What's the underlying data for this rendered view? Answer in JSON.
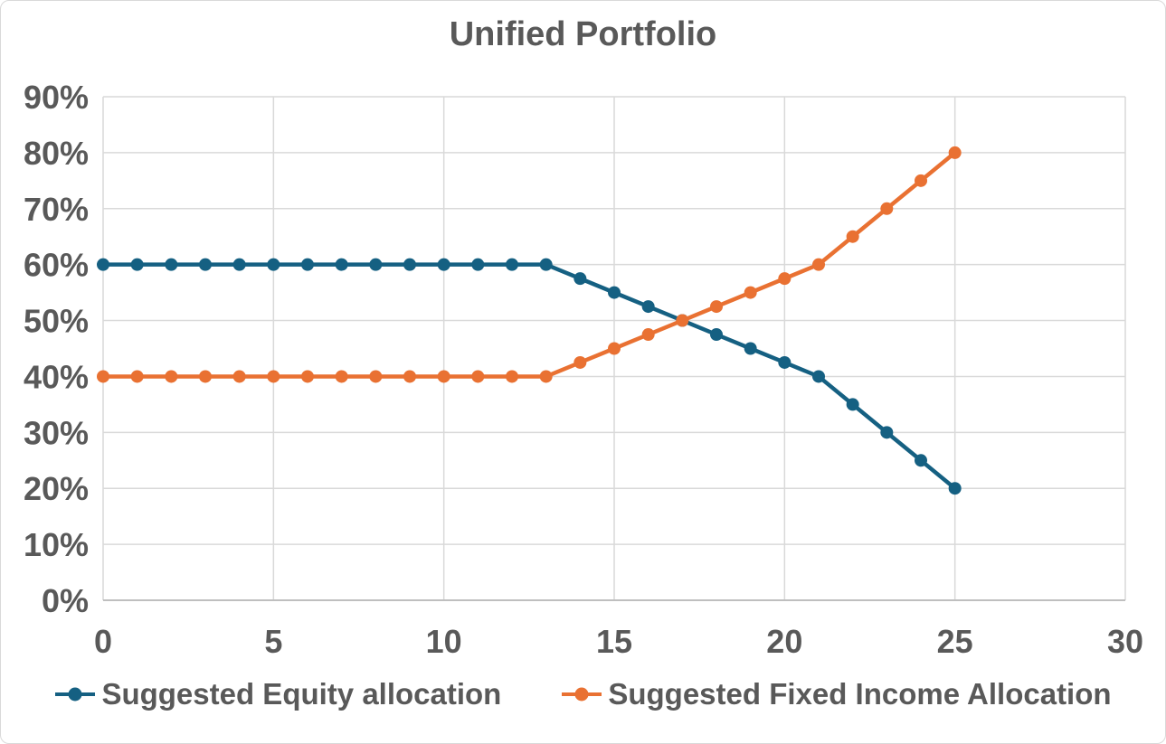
{
  "chart_data": {
    "type": "line",
    "title": "Unified Portfolio",
    "xlabel": "",
    "ylabel": "",
    "x": [
      0,
      1,
      2,
      3,
      4,
      5,
      6,
      7,
      8,
      9,
      10,
      11,
      12,
      13,
      14,
      15,
      16,
      17,
      18,
      19,
      20,
      21,
      22,
      23,
      24,
      25
    ],
    "series": [
      {
        "name": "Suggested Equity allocation",
        "color": "#156082",
        "values": [
          60,
          60,
          60,
          60,
          60,
          60,
          60,
          60,
          60,
          60,
          60,
          60,
          60,
          60,
          57.5,
          55,
          52.5,
          50,
          47.5,
          45,
          42.5,
          40,
          35,
          30,
          25,
          20
        ]
      },
      {
        "name": "Suggested Fixed Income Allocation",
        "color": "#E97132",
        "values": [
          40,
          40,
          40,
          40,
          40,
          40,
          40,
          40,
          40,
          40,
          40,
          40,
          40,
          40,
          42.5,
          45,
          47.5,
          50,
          52.5,
          55,
          57.5,
          60,
          65,
          70,
          75,
          80
        ]
      }
    ],
    "xlim": [
      0,
      30
    ],
    "ylim": [
      0,
      90
    ],
    "x_ticks": [
      0,
      5,
      10,
      15,
      20,
      25,
      30
    ],
    "x_tick_labels": [
      "0",
      "5",
      "10",
      "15",
      "20",
      "25",
      "30"
    ],
    "y_ticks": [
      0,
      10,
      20,
      30,
      40,
      50,
      60,
      70,
      80,
      90
    ],
    "y_tick_labels": [
      "0%",
      "10%",
      "20%",
      "30%",
      "40%",
      "50%",
      "60%",
      "70%",
      "80%",
      "90%"
    ],
    "grid": true,
    "legend_position": "bottom",
    "marker": "circle",
    "colors": {
      "text": "#595959",
      "gridline": "#D9D9D9",
      "axis_line": "#BFBFBF",
      "background": "#FFFFFF",
      "chart_border": "#D9D9D9"
    }
  }
}
